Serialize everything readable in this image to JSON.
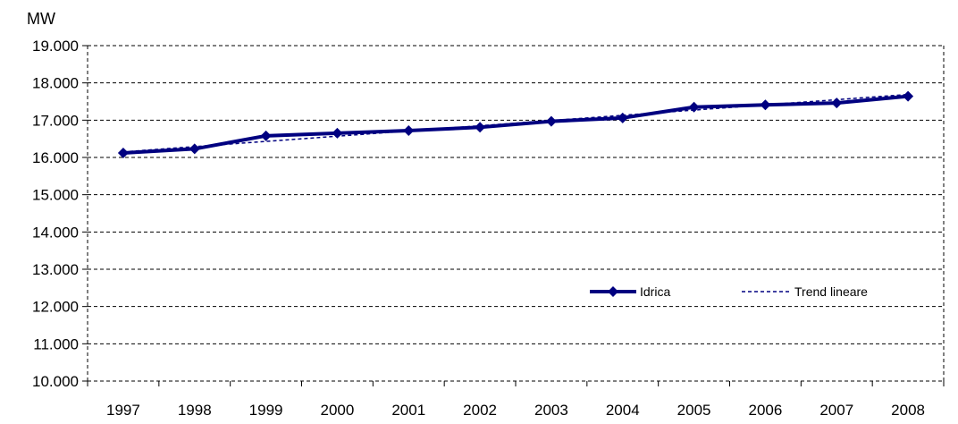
{
  "chart_data": {
    "type": "line",
    "title": "",
    "xlabel": "",
    "ylabel": "MW",
    "categories": [
      "1997",
      "1998",
      "1999",
      "2000",
      "2001",
      "2002",
      "2003",
      "2004",
      "2005",
      "2006",
      "2007",
      "2008"
    ],
    "y_tick_labels": [
      "10.000",
      "11.000",
      "12.000",
      "13.000",
      "14.000",
      "15.000",
      "16.000",
      "17.000",
      "18.000",
      "19.000"
    ],
    "ylim": [
      10000,
      19000
    ],
    "y_ticks": [
      10000,
      11000,
      12000,
      13000,
      14000,
      15000,
      16000,
      17000,
      18000,
      19000
    ],
    "grid": "horizontal-dashed",
    "legend_placement": "bottom-right",
    "series": [
      {
        "name": "Idrica",
        "style": "solid-diamond",
        "color": "#000080",
        "values": [
          16120,
          16230,
          16580,
          16650,
          16720,
          16810,
          16970,
          17060,
          17350,
          17410,
          17460,
          17640
        ]
      },
      {
        "name": "Trend lineare",
        "style": "dashed",
        "color": "#000080",
        "values": [
          16150,
          16290,
          16430,
          16570,
          16710,
          16850,
          16990,
          17130,
          17270,
          17410,
          17550,
          17690
        ]
      }
    ]
  }
}
